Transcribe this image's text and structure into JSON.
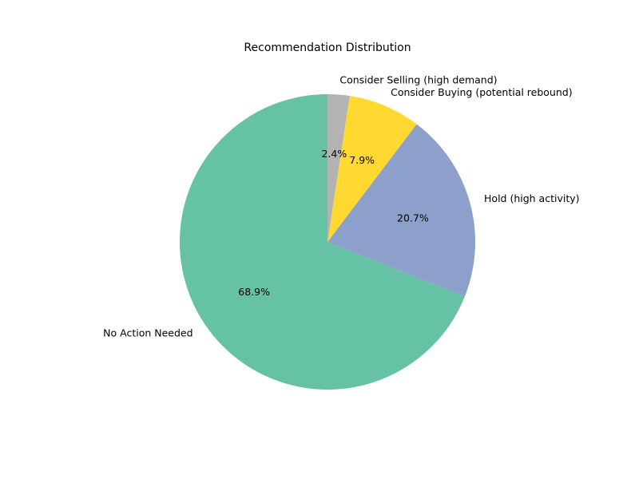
{
  "chart_data": {
    "type": "pie",
    "title": "Recommendation Distribution",
    "start_angle_deg": 90,
    "direction": "counterclockwise",
    "slices": [
      {
        "label": "No Action Needed",
        "value": 68.9,
        "pct_label": "68.9%",
        "color": "#66c2a5"
      },
      {
        "label": "Hold (high activity)",
        "value": 20.7,
        "pct_label": "20.7%",
        "color": "#8da0cb"
      },
      {
        "label": "Consider Buying (potential rebound)",
        "value": 7.9,
        "pct_label": "7.9%",
        "color": "#ffd92f"
      },
      {
        "label": "Consider Selling (high demand)",
        "value": 2.4,
        "pct_label": "2.4%",
        "color": "#b3b3b3"
      }
    ]
  }
}
